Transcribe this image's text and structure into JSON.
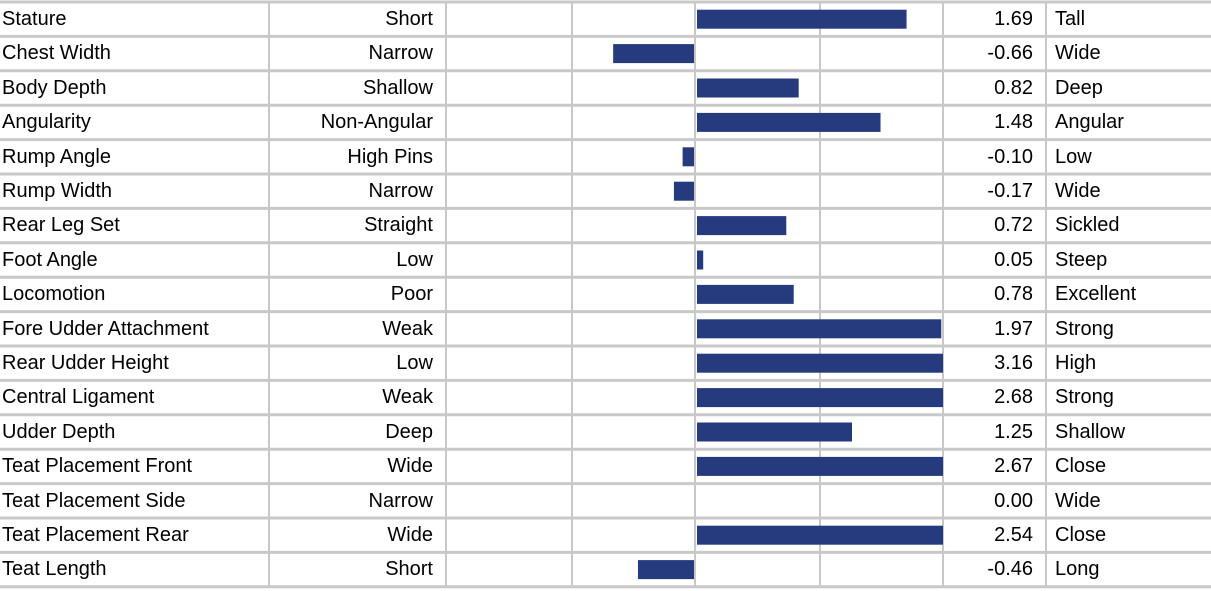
{
  "colors": {
    "bar": "#263a7e",
    "grid": "#c8c8c8"
  },
  "chart_data": {
    "type": "bar",
    "orientation": "horizontal",
    "xlim": [
      -2.0,
      2.0
    ],
    "grid": true,
    "rows": [
      {
        "trait": "Stature",
        "low": "Short",
        "value": 1.69,
        "value_label": "1.69",
        "high": "Tall"
      },
      {
        "trait": "Chest Width",
        "low": "Narrow",
        "value": -0.66,
        "value_label": "-0.66",
        "high": "Wide"
      },
      {
        "trait": "Body Depth",
        "low": "Shallow",
        "value": 0.82,
        "value_label": "0.82",
        "high": "Deep"
      },
      {
        "trait": "Angularity",
        "low": "Non-Angular",
        "value": 1.48,
        "value_label": "1.48",
        "high": "Angular"
      },
      {
        "trait": "Rump Angle",
        "low": "High Pins",
        "value": -0.1,
        "value_label": "-0.10",
        "high": "Low"
      },
      {
        "trait": "Rump Width",
        "low": "Narrow",
        "value": -0.17,
        "value_label": "-0.17",
        "high": "Wide"
      },
      {
        "trait": "Rear Leg Set",
        "low": "Straight",
        "value": 0.72,
        "value_label": "0.72",
        "high": "Sickled"
      },
      {
        "trait": "Foot Angle",
        "low": "Low",
        "value": 0.05,
        "value_label": "0.05",
        "high": "Steep"
      },
      {
        "trait": "Locomotion",
        "low": "Poor",
        "value": 0.78,
        "value_label": "0.78",
        "high": "Excellent"
      },
      {
        "trait": "Fore Udder Attachment",
        "low": "Weak",
        "value": 1.97,
        "value_label": "1.97",
        "high": "Strong"
      },
      {
        "trait": "Rear Udder Height",
        "low": "Low",
        "value": 3.16,
        "value_label": "3.16",
        "high": "High"
      },
      {
        "trait": "Central Ligament",
        "low": "Weak",
        "value": 2.68,
        "value_label": "2.68",
        "high": "Strong"
      },
      {
        "trait": "Udder Depth",
        "low": "Deep",
        "value": 1.25,
        "value_label": "1.25",
        "high": "Shallow"
      },
      {
        "trait": "Teat Placement Front",
        "low": "Wide",
        "value": 2.67,
        "value_label": "2.67",
        "high": "Close"
      },
      {
        "trait": "Teat Placement Side",
        "low": "Narrow",
        "value": 0.0,
        "value_label": "0.00",
        "high": "Wide"
      },
      {
        "trait": "Teat Placement Rear",
        "low": "Wide",
        "value": 2.54,
        "value_label": "2.54",
        "high": "Close"
      },
      {
        "trait": "Teat Length",
        "low": "Short",
        "value": -0.46,
        "value_label": "-0.46",
        "high": "Long"
      }
    ]
  }
}
